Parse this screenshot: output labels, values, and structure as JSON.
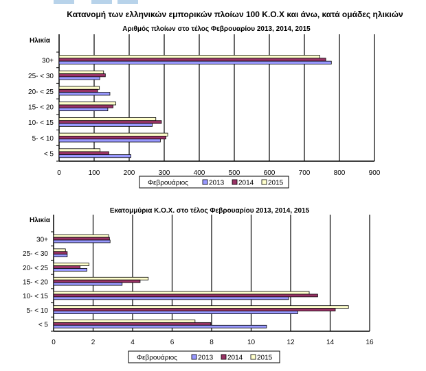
{
  "main_title": "Κατανομή των ελληνικών εμπορικών πλοίων 100 Κ.Ο.Χ και άνω, κατά ομάδες ηλικιών",
  "colors": {
    "2013": "#9999ff",
    "2014": "#993366",
    "2015": "#ffffcc",
    "grid": "#000000"
  },
  "chart_data": [
    {
      "type": "bar",
      "orientation": "horizontal",
      "title": "Αριθμός πλοίων στο τέλος Φεβρουαρίου 2013, 2014, 2015",
      "ylabel": "Ηλικία",
      "xlabel": "",
      "categories": [
        "< 5",
        "5- < 10",
        "10- < 15",
        "15- < 20",
        "20- < 25",
        "25- < 30",
        "30+"
      ],
      "xlim": [
        0,
        900
      ],
      "xticks": [
        0,
        100,
        200,
        300,
        400,
        500,
        600,
        700,
        800,
        900
      ],
      "legend_title": "Φεβρουάριος",
      "legend_position": "bottom",
      "grid": true,
      "series": [
        {
          "name": "2013",
          "values": [
            205,
            289,
            266,
            139,
            145,
            116,
            777
          ]
        },
        {
          "name": "2014",
          "values": [
            142,
            305,
            292,
            154,
            110,
            132,
            761
          ]
        },
        {
          "name": "2015",
          "values": [
            117,
            310,
            276,
            162,
            115,
            127,
            744
          ]
        }
      ]
    },
    {
      "type": "bar",
      "orientation": "horizontal",
      "title": "Εκατομμύρια Κ.Ο.Χ. στο τέλος Φεβρουαρίου  2013, 2014, 2015",
      "ylabel": "Ηλικία",
      "xlabel": "",
      "categories": [
        "< 5",
        "5- < 10",
        "10- < 15",
        "15- < 20",
        "20- < 25",
        "25- < 30",
        "30+"
      ],
      "xlim": [
        0,
        16
      ],
      "xticks": [
        0,
        2,
        4,
        6,
        8,
        10,
        12,
        14,
        16
      ],
      "legend_title": "Φεβρουάριος",
      "legend_position": "bottom",
      "grid": true,
      "series": [
        {
          "name": "2013",
          "values": [
            10.78,
            12.36,
            11.9,
            3.47,
            1.69,
            0.69,
            2.86
          ]
        },
        {
          "name": "2014",
          "values": [
            7.96,
            14.26,
            13.37,
            4.38,
            1.34,
            0.69,
            2.83
          ]
        },
        {
          "name": "2015",
          "values": [
            7.16,
            14.93,
            12.94,
            4.79,
            1.79,
            0.6,
            2.79
          ]
        }
      ]
    }
  ]
}
